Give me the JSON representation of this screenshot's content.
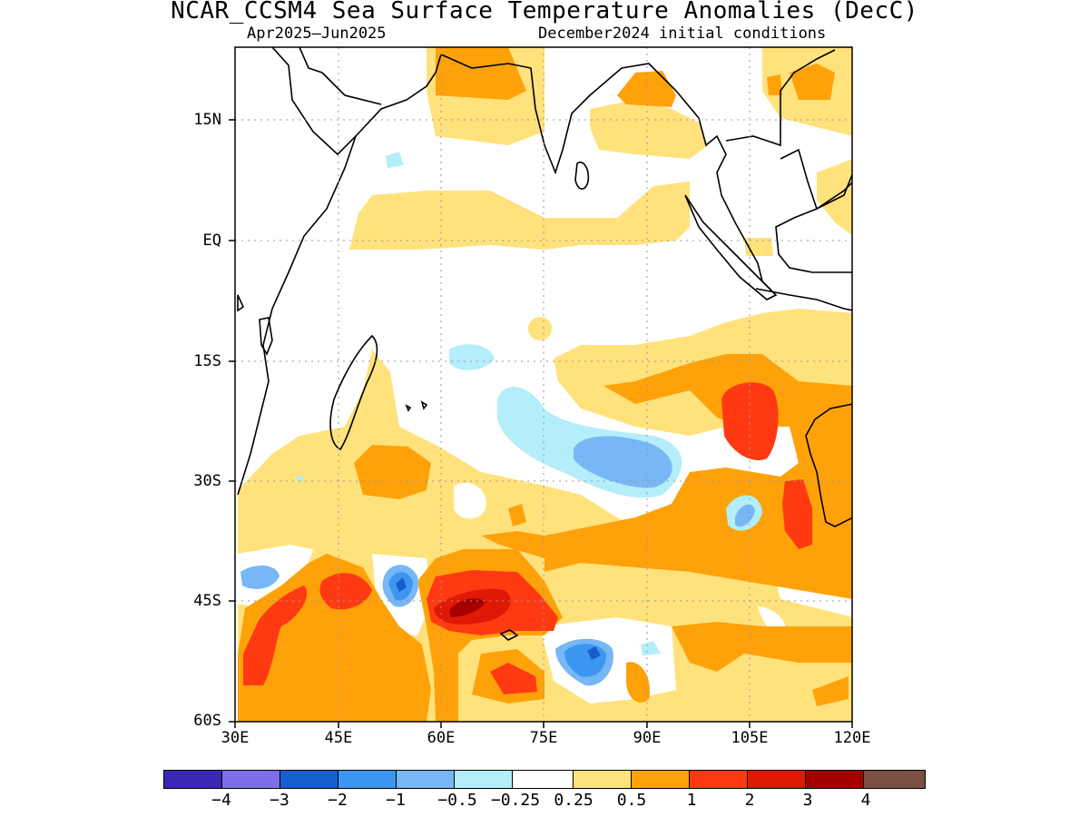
{
  "title": "NCAR_CCSM4 Sea Surface Temperature Anomalies (DecC)",
  "subtitle_left": "Apr2025–Jun2025",
  "subtitle_right": "December2024 initial conditions",
  "map": {
    "region": "Indian Ocean",
    "lon_range": [
      30,
      120
    ],
    "lat_range": [
      -60,
      24
    ],
    "lat_ticks": [
      {
        "value": 15,
        "label": "15N"
      },
      {
        "value": 0,
        "label": "EQ"
      },
      {
        "value": -15,
        "label": "15S"
      },
      {
        "value": -30,
        "label": "30S"
      },
      {
        "value": -45,
        "label": "45S"
      },
      {
        "value": -60,
        "label": "60S"
      }
    ],
    "lon_ticks": [
      {
        "value": 30,
        "label": "30E"
      },
      {
        "value": 45,
        "label": "45E"
      },
      {
        "value": 60,
        "label": "60E"
      },
      {
        "value": 75,
        "label": "75E"
      },
      {
        "value": 90,
        "label": "90E"
      },
      {
        "value": 105,
        "label": "105E"
      },
      {
        "value": 120,
        "label": "120E"
      }
    ],
    "grid": true
  },
  "colorbar": {
    "colors": [
      "#3a27b6",
      "#7d6ee9",
      "#165dce",
      "#3c96f0",
      "#78b7f5",
      "#b3eefa",
      "#ffffff",
      "#ffe27c",
      "#ffa20a",
      "#ff3a12",
      "#e01806",
      "#a50000",
      "#7b4f43"
    ],
    "labels": [
      "−4",
      "−3",
      "−2",
      "−1",
      "−0.5",
      "−0.25",
      "0.25",
      "0.5",
      "1",
      "2",
      "3",
      "4"
    ]
  }
}
